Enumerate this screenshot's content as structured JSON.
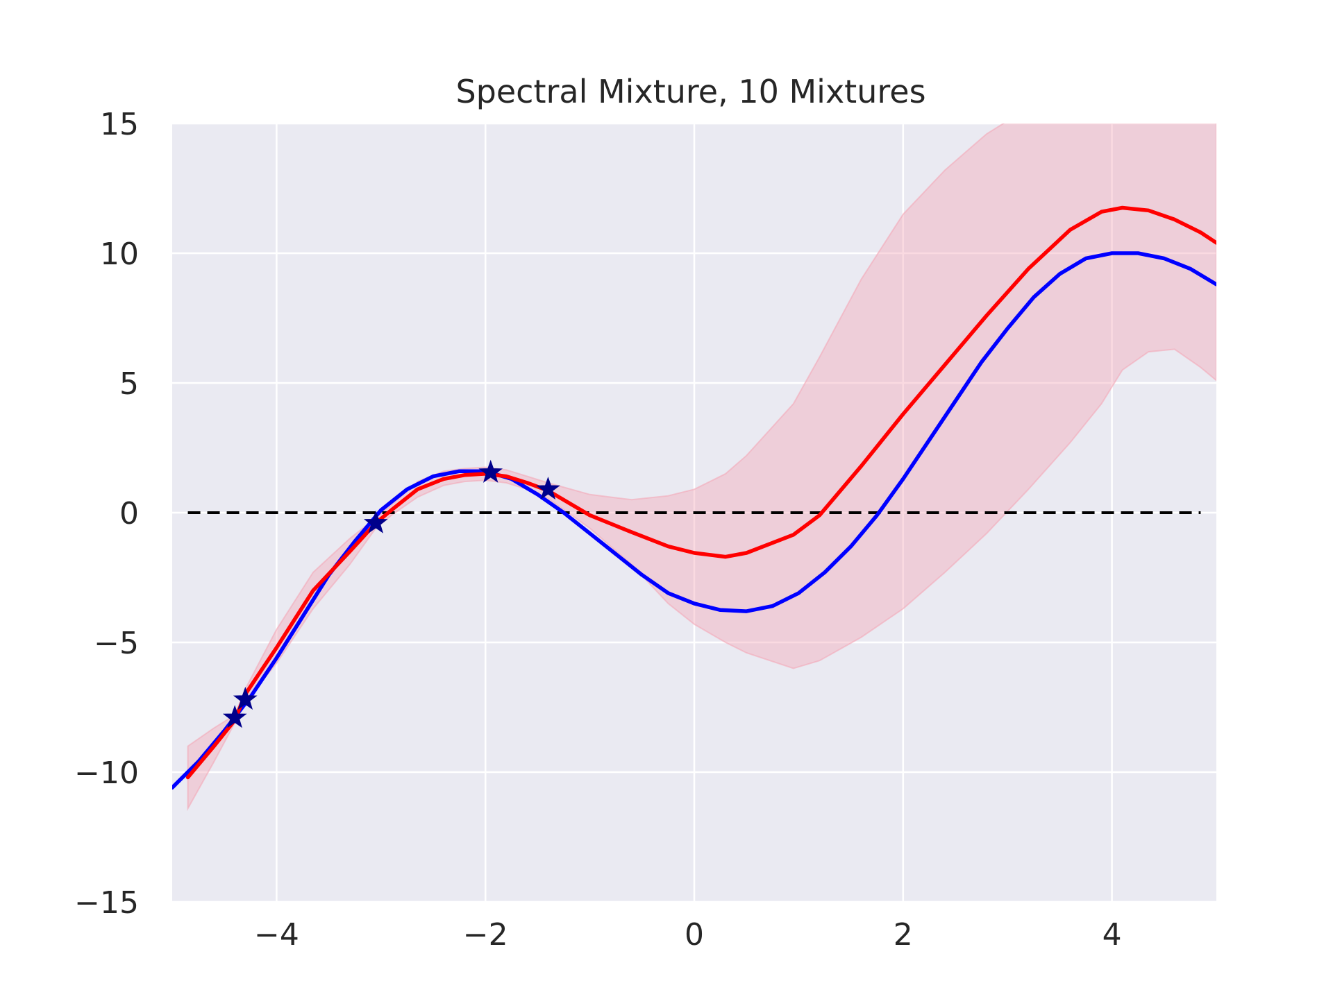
{
  "chart_data": {
    "type": "line",
    "title": "Spectral Mixture, 10 Mixtures",
    "xlabel": "",
    "ylabel": "",
    "xlim": [
      -5,
      5
    ],
    "ylim": [
      -15,
      15
    ],
    "x_ticks": [
      -4,
      -2,
      0,
      2,
      4
    ],
    "x_tick_labels": [
      "−4",
      "−2",
      "0",
      "2",
      "4"
    ],
    "y_ticks": [
      -15,
      -10,
      -5,
      0,
      5,
      10,
      15
    ],
    "y_tick_labels": [
      "−15",
      "−10",
      "−5",
      "0",
      "5",
      "10",
      "15"
    ],
    "grid": true,
    "legend": "none",
    "background_color": "#eaeaf2",
    "series": [
      {
        "role": "true-function",
        "color": "#0000ff",
        "x": [
          -5.0,
          -4.75,
          -4.5,
          -4.25,
          -4.0,
          -3.75,
          -3.5,
          -3.25,
          -3.0,
          -2.75,
          -2.5,
          -2.25,
          -2.0,
          -1.75,
          -1.5,
          -1.25,
          -1.0,
          -0.75,
          -0.5,
          -0.25,
          0.0,
          0.25,
          0.5,
          0.75,
          1.0,
          1.25,
          1.5,
          1.75,
          2.0,
          2.25,
          2.5,
          2.75,
          3.0,
          3.25,
          3.5,
          3.75,
          4.0,
          4.25,
          4.5,
          4.75,
          5.0
        ],
        "y": [
          -10.6,
          -9.6,
          -8.4,
          -7.1,
          -5.6,
          -4.0,
          -2.4,
          -1.1,
          0.1,
          0.9,
          1.4,
          1.6,
          1.6,
          1.3,
          0.7,
          0.0,
          -0.8,
          -1.6,
          -2.4,
          -3.1,
          -3.5,
          -3.75,
          -3.8,
          -3.6,
          -3.1,
          -2.3,
          -1.3,
          -0.1,
          1.3,
          2.8,
          4.3,
          5.8,
          7.1,
          8.3,
          9.2,
          9.8,
          10.0,
          10.0,
          9.8,
          9.4,
          8.8
        ]
      },
      {
        "role": "predictive-mean",
        "color": "#ff0000",
        "x": [
          -4.85,
          -4.6,
          -4.4,
          -4.3,
          -4.0,
          -3.65,
          -3.3,
          -3.05,
          -2.9,
          -2.65,
          -2.4,
          -2.2,
          -2.0,
          -1.8,
          -1.6,
          -1.4,
          -1.0,
          -0.6,
          -0.25,
          0.0,
          0.3,
          0.5,
          0.95,
          1.2,
          1.6,
          2.0,
          2.4,
          2.8,
          3.2,
          3.6,
          3.9,
          4.1,
          4.35,
          4.6,
          4.85,
          5.0
        ],
        "y": [
          -10.2,
          -9.0,
          -8.0,
          -7.0,
          -5.2,
          -3.0,
          -1.5,
          -0.4,
          0.1,
          0.9,
          1.3,
          1.45,
          1.5,
          1.4,
          1.15,
          0.85,
          -0.1,
          -0.75,
          -1.3,
          -1.55,
          -1.7,
          -1.55,
          -0.85,
          -0.1,
          1.8,
          3.8,
          5.7,
          7.6,
          9.4,
          10.9,
          11.6,
          11.75,
          11.65,
          11.3,
          10.8,
          10.4
        ]
      }
    ],
    "confidence_band": {
      "color": "#f4a8b8",
      "x": [
        -4.85,
        -4.6,
        -4.4,
        -4.3,
        -4.0,
        -3.65,
        -3.3,
        -3.05,
        -2.9,
        -2.65,
        -2.4,
        -2.2,
        -2.0,
        -1.8,
        -1.6,
        -1.4,
        -1.0,
        -0.6,
        -0.25,
        0.0,
        0.3,
        0.5,
        0.95,
        1.2,
        1.6,
        2.0,
        2.4,
        2.8,
        3.2,
        3.6,
        3.9,
        4.1,
        4.35,
        4.6,
        4.85,
        5.0
      ],
      "lower": [
        -11.4,
        -9.6,
        -8.1,
        -7.3,
        -5.8,
        -3.7,
        -2.0,
        -0.6,
        -0.1,
        0.6,
        1.05,
        1.2,
        1.25,
        1.15,
        0.9,
        0.55,
        -0.6,
        -2.0,
        -3.5,
        -4.3,
        -5.0,
        -5.4,
        -6.0,
        -5.7,
        -4.8,
        -3.7,
        -2.3,
        -0.8,
        0.9,
        2.7,
        4.2,
        5.5,
        6.2,
        6.3,
        5.6,
        5.1
      ],
      "upper": [
        -9.0,
        -8.3,
        -7.8,
        -6.8,
        -4.5,
        -2.3,
        -1.0,
        -0.2,
        0.3,
        1.2,
        1.6,
        1.7,
        1.75,
        1.65,
        1.4,
        1.15,
        0.7,
        0.5,
        0.65,
        0.9,
        1.5,
        2.2,
        4.2,
        6.0,
        9.0,
        11.5,
        13.2,
        14.6,
        15.6,
        16.8,
        17.8,
        18.5,
        18.9,
        19.2,
        19.5,
        19.6
      ]
    },
    "reference_line": {
      "y": 0,
      "style": "dashed",
      "color": "#000000"
    },
    "observations": {
      "marker": "star",
      "color": "#00008b",
      "x": [
        -4.4,
        -4.3,
        -3.05,
        -1.95,
        -1.4
      ],
      "y": [
        -7.9,
        -7.2,
        -0.4,
        1.55,
        0.9
      ]
    }
  }
}
